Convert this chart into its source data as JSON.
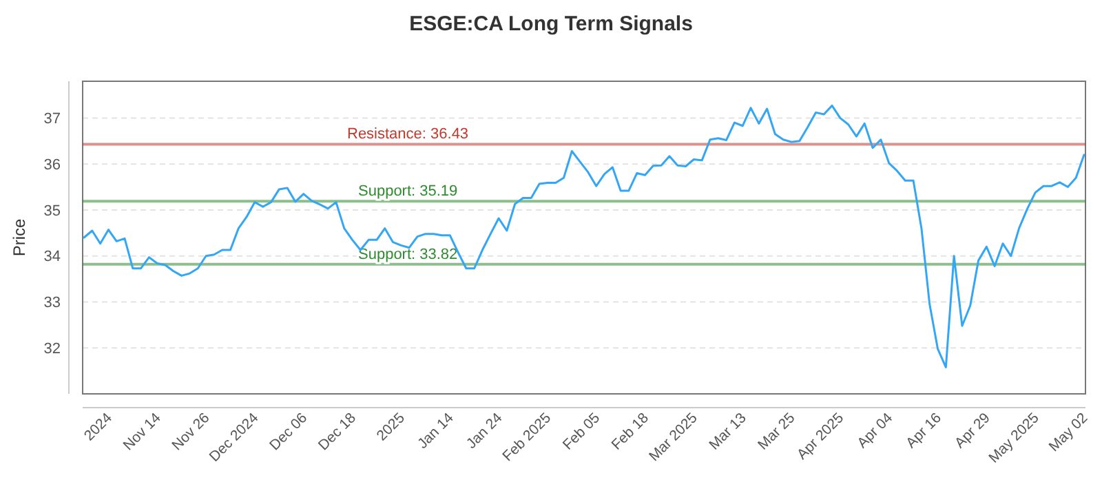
{
  "chart_data": {
    "type": "line",
    "title": "ESGE:CA Long Term Signals",
    "ylabel": "Price",
    "categories": [
      null,
      null,
      null,
      "2024",
      null,
      null,
      null,
      null,
      null,
      "Nov 14",
      null,
      null,
      null,
      null,
      null,
      "Nov 26",
      null,
      null,
      null,
      null,
      null,
      "Dec 2024",
      null,
      null,
      null,
      null,
      null,
      "Dec 06",
      null,
      null,
      null,
      null,
      null,
      "Dec 18",
      null,
      null,
      null,
      null,
      null,
      "2025",
      null,
      null,
      null,
      null,
      null,
      "Jan 14",
      null,
      null,
      null,
      null,
      null,
      "Jan 24",
      null,
      null,
      null,
      null,
      null,
      "Feb 2025",
      null,
      null,
      null,
      null,
      null,
      "Feb 05",
      null,
      null,
      null,
      null,
      null,
      "Feb 18",
      null,
      null,
      null,
      null,
      null,
      "Mar 2025",
      null,
      null,
      null,
      null,
      null,
      "Mar 13",
      null,
      null,
      null,
      null,
      null,
      "Mar 25",
      null,
      null,
      null,
      null,
      null,
      "Apr 2025",
      null,
      null,
      null,
      null,
      null,
      "Apr 04",
      null,
      null,
      null,
      null,
      null,
      "Apr 16",
      null,
      null,
      null,
      null,
      null,
      "Apr 29",
      null,
      null,
      null,
      null,
      null,
      "May 2025",
      null,
      null,
      null,
      null,
      null,
      "May 02"
    ],
    "series": [
      {
        "color": "#33a6f5",
        "values": [
          34.4,
          34.55,
          34.27,
          34.57,
          34.32,
          34.38,
          33.73,
          33.73,
          33.97,
          33.84,
          33.8,
          33.67,
          33.57,
          33.62,
          33.73,
          34.0,
          34.03,
          34.13,
          34.13,
          34.6,
          34.85,
          35.17,
          35.07,
          35.17,
          35.45,
          35.48,
          35.18,
          35.35,
          35.2,
          35.12,
          35.03,
          35.17,
          34.6,
          34.35,
          34.13,
          34.35,
          34.35,
          34.6,
          34.3,
          34.23,
          34.18,
          34.42,
          34.48,
          34.48,
          34.45,
          34.45,
          34.08,
          33.73,
          33.73,
          34.13,
          34.48,
          34.82,
          34.55,
          35.13,
          35.26,
          35.26,
          35.57,
          35.59,
          35.59,
          35.7,
          36.28,
          36.05,
          35.82,
          35.52,
          35.78,
          35.93,
          35.42,
          35.42,
          35.8,
          35.76,
          35.96,
          35.97,
          36.17,
          35.97,
          35.95,
          36.1,
          36.08,
          36.53,
          36.56,
          36.52,
          36.9,
          36.83,
          37.22,
          36.88,
          37.2,
          36.65,
          36.53,
          36.48,
          36.5,
          36.8,
          37.12,
          37.08,
          37.27,
          37.0,
          36.86,
          36.6,
          36.88,
          36.35,
          36.53,
          36.02,
          35.85,
          35.64,
          35.64,
          34.6,
          32.95,
          31.98,
          31.58,
          34.0,
          32.48,
          32.92,
          33.9,
          34.2,
          33.78,
          34.27,
          34.0,
          34.6,
          35.02,
          35.38,
          35.52,
          35.52,
          35.6,
          35.5,
          35.7,
          36.2
        ]
      }
    ],
    "ylim": [
      31,
      37.8
    ],
    "yticks": [
      32,
      33,
      34,
      35,
      36,
      37
    ],
    "grid": "y",
    "marker": "none",
    "line_style": "solid",
    "ref_lines": [
      {
        "axis": "y",
        "value": 36.43,
        "label": "Resistance: 36.43",
        "color": "#c0392b"
      },
      {
        "axis": "y",
        "value": 35.19,
        "label": "Support: 35.19",
        "color": "#2e8b2e"
      },
      {
        "axis": "y",
        "value": 33.82,
        "label": "Support: 33.82",
        "color": "#2e8b2e"
      }
    ]
  }
}
